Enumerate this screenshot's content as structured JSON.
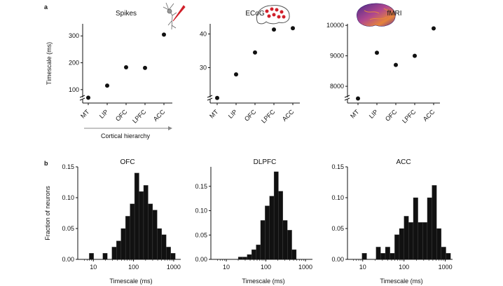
{
  "panel_labels": {
    "a": "a",
    "b": "b"
  },
  "colors": {
    "ink": "#111111",
    "bar": "#111111",
    "arrow": "#888888",
    "brain_fill": "#7a4fa8",
    "dot_red": "#d0202a"
  },
  "icons": {
    "spikes": "neuron-icon",
    "ecog": "ecog-brain-icon",
    "fmri": "fmri-cortex-icon"
  },
  "chart_data": [
    {
      "type": "scatter",
      "title": "Spikes",
      "xlabel": "Cortical hierarchy",
      "ylabel": "Timescale (ms)",
      "categories": [
        "MT",
        "LIP",
        "OFC",
        "LPFC",
        "ACC"
      ],
      "values": [
        70,
        115,
        183,
        181,
        305
      ],
      "ylim": [
        50,
        345
      ],
      "yticks": [
        100,
        200,
        300
      ],
      "axis_break": true,
      "grid": false
    },
    {
      "type": "scatter",
      "title": "ECoG",
      "xlabel": "",
      "ylabel": "",
      "categories": [
        "MT",
        "LIP",
        "OFC",
        "LPFC",
        "ACC"
      ],
      "values": [
        21,
        28,
        34.5,
        41.3,
        41.7
      ],
      "ylim": [
        19.5,
        43
      ],
      "yticks": [
        30,
        40
      ],
      "axis_break": true,
      "grid": false
    },
    {
      "type": "scatter",
      "title": "fMRI",
      "xlabel": "",
      "ylabel": "",
      "categories": [
        "MT",
        "LIP",
        "OFC",
        "LPFC",
        "ACC"
      ],
      "values": [
        7600,
        9100,
        8700,
        9000,
        9900
      ],
      "ylim": [
        7450,
        10050
      ],
      "yticks": [
        8000,
        9000,
        10000
      ],
      "axis_break": true,
      "grid": false
    },
    {
      "type": "bar",
      "title": "OFC",
      "xlabel": "Timescale (ms)",
      "ylabel": "Fraction of neurons",
      "xscale": "log",
      "xlim": [
        5,
        1500
      ],
      "xticks": [
        10,
        100,
        1000
      ],
      "ylim": [
        0,
        0.15
      ],
      "yticks": [
        0.0,
        0.05,
        0.1,
        0.15
      ],
      "bin_edges": [
        7.9,
        10.2,
        13.3,
        17.2,
        22.3,
        28.9,
        37.5,
        48.6,
        63.1,
        81.8,
        106.1,
        137.5,
        178.3,
        231.2,
        299.8,
        388.7,
        504.0,
        653.5,
        847.4,
        1098.8
      ],
      "values": [
        0.01,
        0,
        0,
        0.01,
        0,
        0.02,
        0.03,
        0.05,
        0.07,
        0.09,
        0.14,
        0.11,
        0.12,
        0.09,
        0.08,
        0.05,
        0.04,
        0.02,
        0.01
      ],
      "grid": false
    },
    {
      "type": "bar",
      "title": "DLPFC",
      "xlabel": "Timescale (ms)",
      "ylabel": "",
      "xscale": "log",
      "xlim": [
        5,
        1500
      ],
      "xticks": [
        10,
        100,
        1000
      ],
      "ylim": [
        0,
        0.19
      ],
      "yticks": [
        0.0,
        0.05,
        0.1,
        0.15
      ],
      "bin_edges": [
        20.0,
        25.9,
        33.6,
        43.6,
        56.6,
        73.4,
        95.2,
        123.4,
        160.1,
        207.6,
        269.2,
        349.1,
        452.7,
        587.1
      ],
      "values": [
        0.005,
        0.005,
        0.01,
        0.02,
        0.03,
        0.08,
        0.11,
        0.13,
        0.18,
        0.14,
        0.08,
        0.06,
        0.02
      ],
      "grid": false
    },
    {
      "type": "bar",
      "title": "ACC",
      "xlabel": "Timescale (ms)",
      "ylabel": "",
      "xscale": "log",
      "xlim": [
        5,
        1500
      ],
      "xticks": [
        10,
        100,
        1000
      ],
      "ylim": [
        0,
        0.15
      ],
      "yticks": [
        0.0,
        0.05,
        0.1,
        0.15
      ],
      "bin_edges": [
        9.6,
        12.5,
        16.2,
        21.0,
        27.2,
        35.3,
        45.8,
        59.4,
        77.0,
        99.9,
        129.5,
        168.0,
        217.9,
        282.6,
        366.5,
        475.3,
        616.4,
        799.4,
        1036.8,
        1344.6
      ],
      "values": [
        0.01,
        0,
        0,
        0.02,
        0.01,
        0.02,
        0.01,
        0.04,
        0.05,
        0.07,
        0.06,
        0.1,
        0.06,
        0.06,
        0.1,
        0.12,
        0.05,
        0.02,
        0.01
      ],
      "grid": false
    }
  ]
}
